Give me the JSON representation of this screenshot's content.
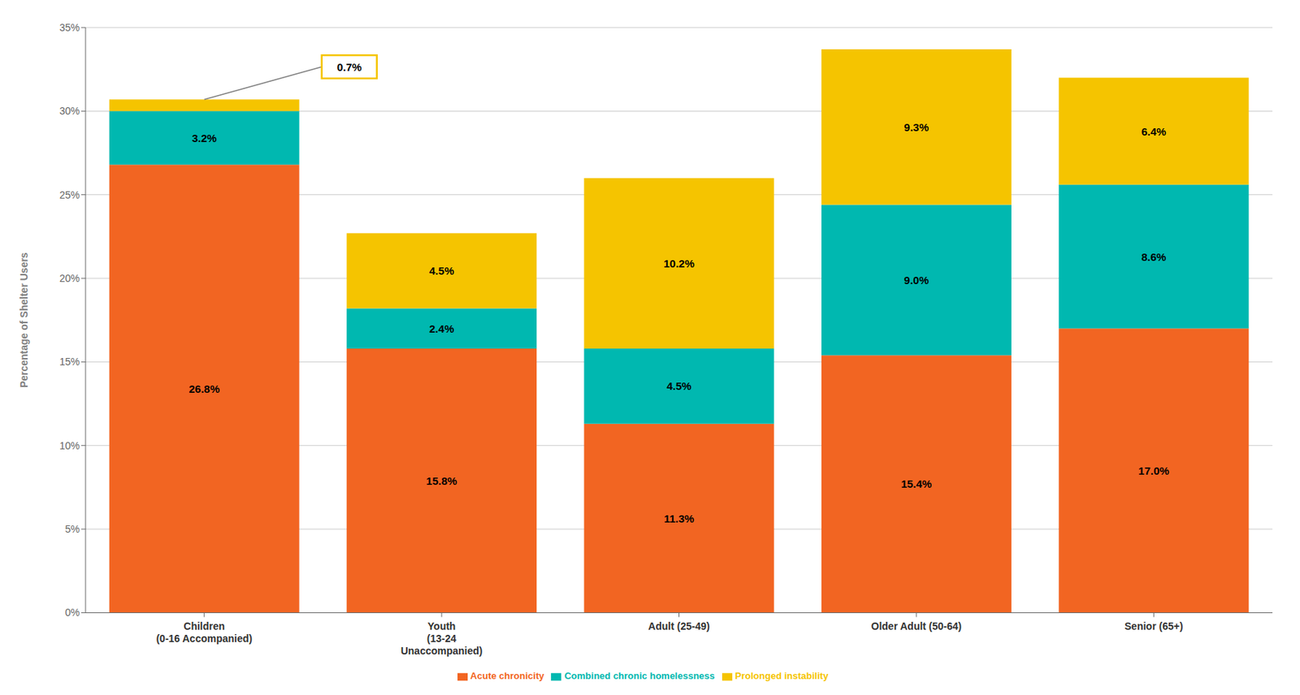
{
  "chart_data": {
    "type": "bar",
    "stacked": true,
    "categories": [
      "Children\n(0-16 Accompanied)",
      "Youth\n(13-24\nUnaccompanied)",
      "Adult (25-49)",
      "Older Adult (50-64)",
      "Senior (65+)"
    ],
    "series": [
      {
        "name": "Acute chronicity",
        "color": "#F26522",
        "values": [
          26.8,
          15.8,
          11.3,
          15.4,
          17.0
        ],
        "value_labels": [
          "26.8%",
          "15.8%",
          "11.3%",
          "15.4%",
          "17.0%"
        ]
      },
      {
        "name": "Combined chronic homelessness",
        "color": "#00B8B0",
        "values": [
          3.2,
          2.4,
          4.5,
          9.0,
          8.6
        ],
        "value_labels": [
          "3.2%",
          "2.4%",
          "4.5%",
          "9.0%",
          "8.6%"
        ]
      },
      {
        "name": "Prolonged instability",
        "color": "#F5C400",
        "values": [
          0.7,
          4.5,
          10.2,
          9.3,
          6.4
        ],
        "value_labels": [
          null,
          "4.5%",
          "10.2%",
          "9.3%",
          "6.4%"
        ]
      }
    ],
    "ylabel": "Percentage of Shelter Users",
    "ylim": [
      0,
      35
    ],
    "yticks": [
      {
        "value": 0,
        "label": "0%"
      },
      {
        "value": 5,
        "label": "5%"
      },
      {
        "value": 10,
        "label": "10%"
      },
      {
        "value": 15,
        "label": "15%"
      },
      {
        "value": 20,
        "label": "20%"
      },
      {
        "value": 25,
        "label": "25%"
      },
      {
        "value": 30,
        "label": "30%"
      },
      {
        "value": 35,
        "label": "35%"
      }
    ],
    "grid": true,
    "legend": "bottom",
    "data_labels": true,
    "annotations": [
      {
        "text": "0.7%",
        "category": "Children\n(0-16 Accompanied)",
        "series": "Prolonged instability"
      }
    ]
  }
}
